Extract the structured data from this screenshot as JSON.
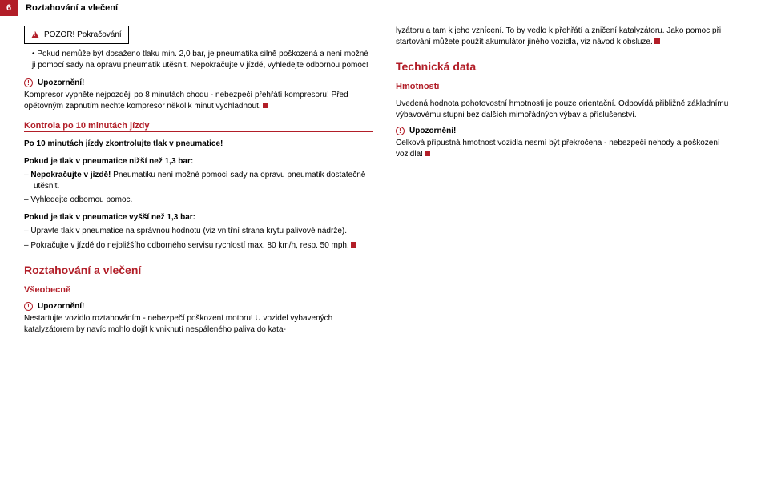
{
  "header": {
    "num": "6",
    "title": "Roztahování a vlečení"
  },
  "left": {
    "warnbox": "POZOR! Pokračování",
    "bullet": "Pokud nemůže být dosaženo tlaku min. 2,0 bar, je pneumatika silně poškozená a není možné ji pomocí sady na opravu pneumatik utěsnit. Nepokračujte v jízdě, vyhledejte odbornou pomoc!",
    "upo1_title": "Upozornění!",
    "upo1_text": "Kompresor vypněte nejpozději po 8 minutách chodu - nebezpečí přehřátí kompresoru! Před opětovným zapnutím nechte kompresor několik minut vychladnout.",
    "sec1": "Kontrola po 10 minutách jízdy",
    "sec1_b": "Po 10 minutách jízdy zkontrolujte tlak v pneumatice!",
    "low_t": "Pokud je tlak v pneumatice nižší než 1,3 bar:",
    "low_1": "Nepokračujte v jízdě! Pneumatiku není možné pomocí sady na opravu pneumatik dostatečně utěsnit.",
    "low_2": "Vyhledejte odbornou pomoc.",
    "high_t": "Pokud je tlak v pneumatice vyšší než 1,3 bar:",
    "high_1": "Upravte tlak v pneumatice na správnou hodnotu (viz vnitřní strana krytu palivové nádrže).",
    "high_2": "Pokračujte v jízdě do nejbližšího odborného servisu rychlostí max. 80 km/h, resp. 50 mph.",
    "sec2": "Roztahování a vlečení",
    "sec3": "Všeobecně",
    "upo2_title": "Upozornění!",
    "upo2_text": "Nestartujte vozidlo roztahováním - nebezpečí poškození motoru! U vozidel vybavených katalyzátorem by navíc mohlo dojít k vniknutí nespáleného paliva do kata-"
  },
  "right": {
    "cont": "lyzátoru a tam k jeho vznícení. To by vedlo k přehřátí a zničení katalyzátoru. Jako pomoc při startování můžete použít akumulátor jiného vozidla, viz návod k obsluze.",
    "tech": "Technická data",
    "hm": "Hmotnosti",
    "hm_text": "Uvedená hodnota pohotovostní hmotnosti je pouze orientační. Odpovídá přibližně základnímu výbavovému stupni bez dalších mimořádných výbav a příslušenství.",
    "upo_title": "Upozornění!",
    "upo_text": "Celková přípustná hmotnost vozidla nesmí být překročena - nebezpečí nehody a poškození vozidla!"
  }
}
